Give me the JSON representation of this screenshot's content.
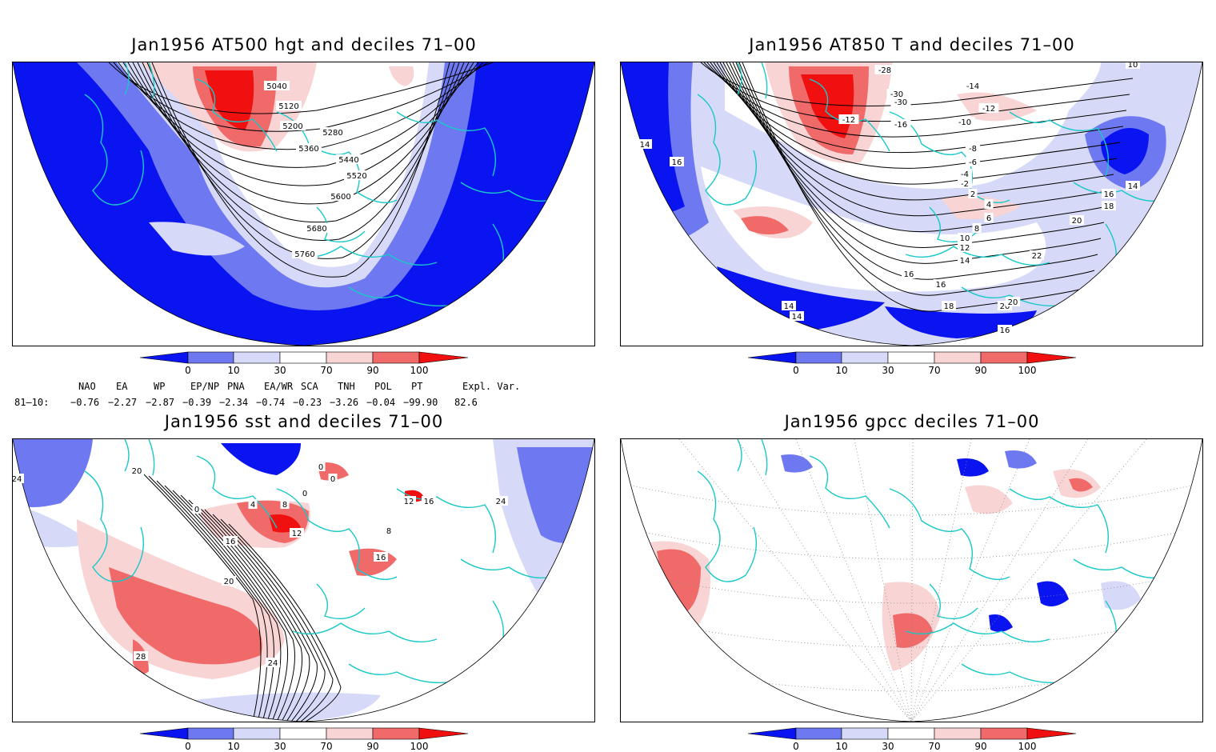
{
  "colors": {
    "deep_blue": "#0a14f0",
    "mid_blue": "#6e78f0",
    "light_blue": "#d6daf8",
    "white": "#ffffff",
    "light_red": "#f8d4d4",
    "mid_red": "#f06a6a",
    "deep_red": "#f01010",
    "coast": "#19c8c8",
    "contour": "#000000"
  },
  "colorbar": {
    "ticks": [
      "0",
      "10",
      "30",
      "70",
      "90",
      "100"
    ],
    "ticks_values": [
      0,
      10,
      30,
      70,
      90,
      100
    ]
  },
  "panels": [
    {
      "title": "Jan1956 AT500 hgt and deciles 71–00",
      "contour_labels": [
        "5040",
        "5120",
        "5200",
        "5280",
        "5360",
        "5440",
        "5520",
        "5600",
        "5680",
        "5760"
      ]
    },
    {
      "title": "Jan1956 AT850 T and deciles 71–00",
      "contour_labels": [
        "-28",
        "-30",
        "-30",
        "-14",
        "-12",
        "-10",
        "-12",
        "-16",
        "-8",
        "-6",
        "-4",
        "-2",
        "2",
        "4",
        "6",
        "8",
        "10",
        "12",
        "14",
        "16",
        "16",
        "18",
        "20",
        "20",
        "22",
        "14",
        "16",
        "14",
        "14",
        "16",
        "18",
        "14",
        "16",
        "20",
        "10"
      ]
    },
    {
      "title": "Jan1956 sst and deciles 71–00",
      "contour_labels": [
        "24",
        "20",
        "0",
        "0",
        "0",
        "4",
        "8",
        "12",
        "16",
        "20",
        "24",
        "28",
        "16",
        "12",
        "8",
        "16",
        "24",
        "0"
      ]
    },
    {
      "title": "Jan1956 gpcc deciles 71–00",
      "contour_labels": []
    }
  ],
  "teleconnections": {
    "headers": [
      "NAO",
      "EA",
      "WP",
      "EP/NP",
      "PNA",
      "EA/WR",
      "SCA",
      "TNH",
      "POL",
      "PT",
      "Expl. Var."
    ],
    "row_label": "81–10:",
    "values": [
      "−0.76",
      "−2.27",
      "−2.87",
      "−0.39",
      "−2.34",
      "−0.74",
      "−0.23",
      "−3.26",
      "−0.04",
      "−99.90",
      "82.6"
    ]
  }
}
